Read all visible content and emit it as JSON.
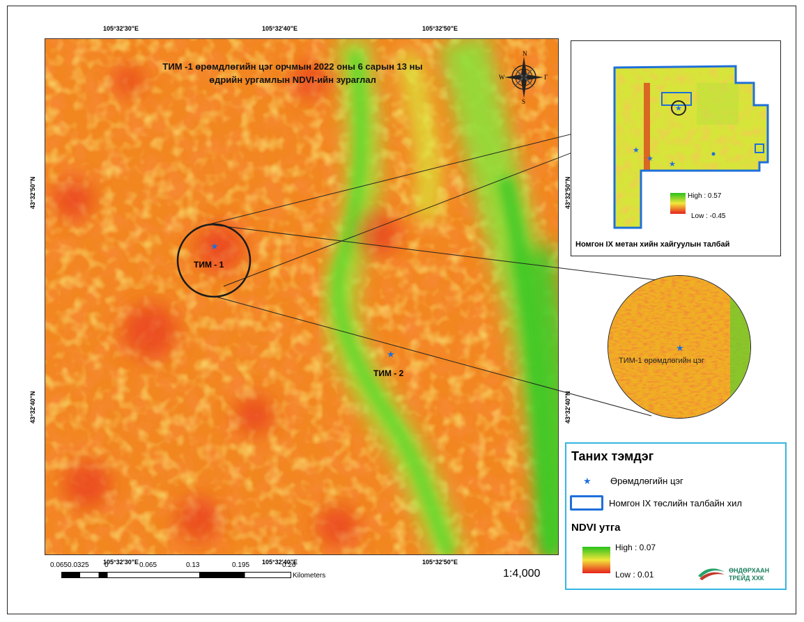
{
  "map": {
    "title_line1": "ТИМ -1 өрөмдлөгийн цэг орчмын 2022 оны 6 сарын 13 ны",
    "title_line2": "өдрийн ургамлын NDVI-ийн зураглал",
    "top_coords": [
      "105°32'30\"E",
      "105°32'40\"E",
      "105°32'50\"E"
    ],
    "bottom_coords": [
      "105°32'30\"E",
      "105°32'40\"E",
      "105°32'50\"E"
    ],
    "left_coords": [
      "43°32'50\"N",
      "43°32'40\"N"
    ],
    "right_coords": [
      "43°32'50\"N",
      "43°32'40\"N"
    ],
    "sites": [
      "ТИМ - 1",
      "ТИМ - 2"
    ],
    "zoom_label": "ТИМ-1 өрөмдлөгийн цэг",
    "scale": "1:4,000",
    "scalebar_labels": [
      "0.0650.0325",
      "0",
      "0.065",
      "0.13",
      "0.195",
      "0.26"
    ],
    "scalebar_unit": "Kilometers",
    "compass": {
      "n": "N",
      "s": "S",
      "w": "W",
      "e": "Г"
    }
  },
  "inset": {
    "caption": "Номгон IX метан хийн хайгуулын талбай",
    "high": "High : 0.57",
    "low": "Low : -0.45",
    "right_coord": "43°32'50\"N"
  },
  "legend": {
    "title": "Таних тэмдэг",
    "drill_point": "Өрөмдлөгийн цэг",
    "boundary": "Номгон IX төслийн талбайн хил",
    "ndvi_title": "NDVI утга",
    "high": "High : 0.07",
    "low": "Low : 0.01"
  },
  "logo": {
    "line1": "ӨНДӨРХААН",
    "line2": "ТРЕЙД ХХК"
  },
  "colors": {
    "high": "#27c21c",
    "mid": "#f3e53a",
    "low": "#e6201c",
    "boundary": "#1e6fd9",
    "legend_border": "#35b5e0"
  }
}
